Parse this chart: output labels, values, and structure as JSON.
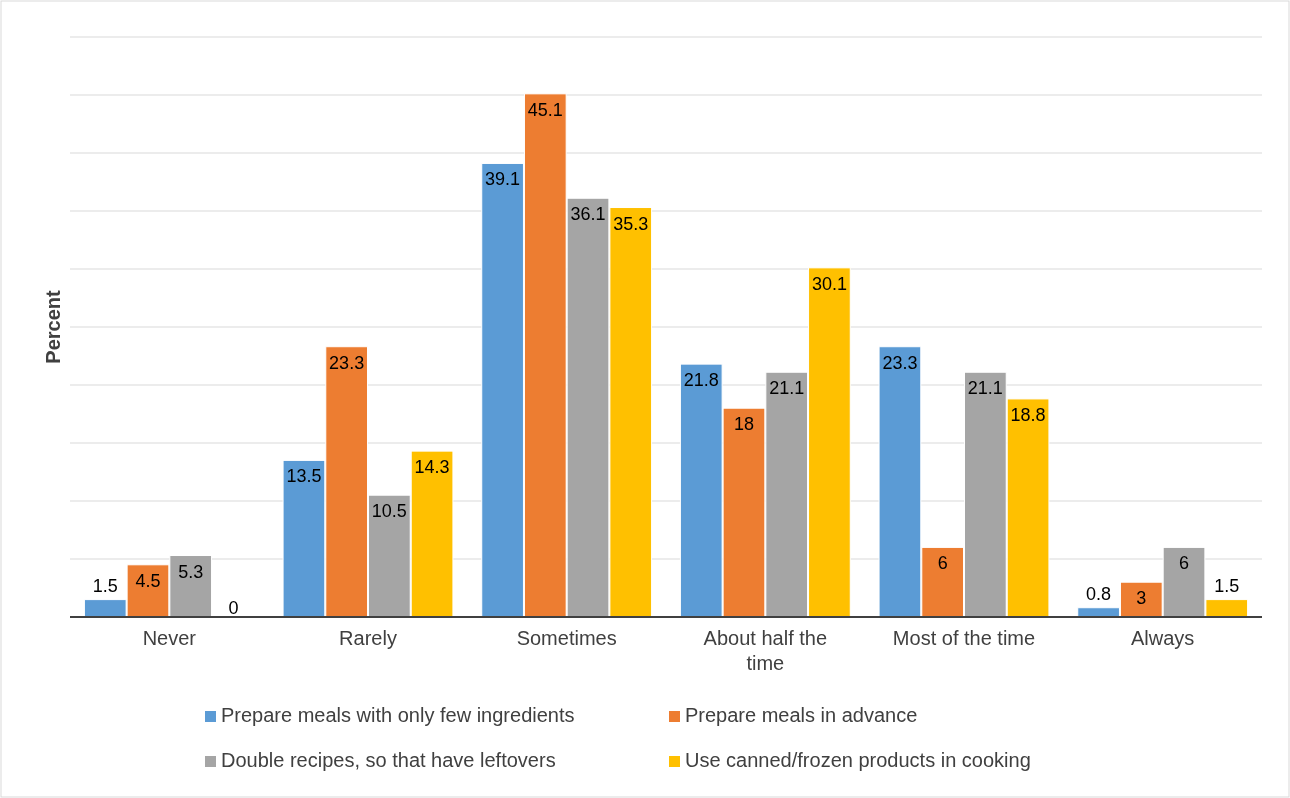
{
  "chart_data": {
    "type": "bar",
    "ylabel": "Percent",
    "categories": [
      "Never",
      "Rarely",
      "Sometimes",
      "About half the time",
      "Most of the time",
      "Always"
    ],
    "series": [
      {
        "name": "Prepare meals with only few ingredients",
        "color": "#5b9bd5",
        "values": [
          1.5,
          13.5,
          39.1,
          21.8,
          23.3,
          0.8
        ]
      },
      {
        "name": "Prepare meals in advance",
        "color": "#ed7d31",
        "values": [
          4.5,
          23.3,
          45.1,
          18,
          6,
          3
        ]
      },
      {
        "name": "Double recipes, so that have leftovers",
        "color": "#a5a5a5",
        "values": [
          5.3,
          10.5,
          36.1,
          21.1,
          21.1,
          6
        ]
      },
      {
        "name": "Use canned/frozen products in cooking",
        "color": "#ffc000",
        "values": [
          0,
          14.3,
          35.3,
          30.1,
          18.8,
          1.5
        ]
      }
    ],
    "ylim": [
      0,
      50
    ],
    "yticks": [
      {
        "value": 0,
        "label": null
      },
      {
        "value": 5,
        "label": null
      },
      {
        "value": 10,
        "label": null
      },
      {
        "value": 15,
        "label": null
      },
      {
        "value": 20,
        "label": null
      },
      {
        "value": 25,
        "label": null
      },
      {
        "value": 30,
        "label": null
      },
      {
        "value": 35,
        "label": null
      },
      {
        "value": 40,
        "label": null
      },
      {
        "value": 45,
        "label": null
      },
      {
        "value": 50,
        "label": null
      }
    ],
    "tick_labels": "x",
    "grid": "y",
    "data_labels": true,
    "legend": "bottom"
  }
}
